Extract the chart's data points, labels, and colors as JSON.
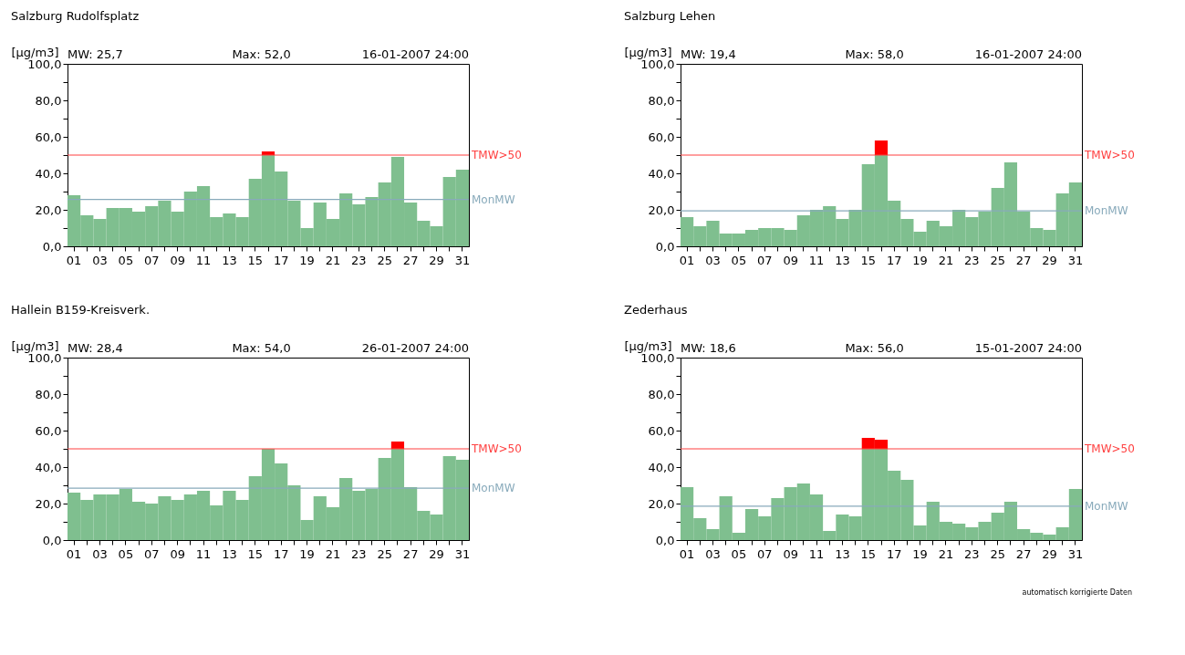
{
  "chart_data": [
    {
      "type": "bar",
      "title": "Salzburg Rudolfsplatz",
      "ylabel": "[µg/m3]",
      "annotations": [
        "MW:  25,7",
        "Max:  52,0",
        "16-01-2007 24:00"
      ],
      "stacked": true,
      "legend": false,
      "grid": false,
      "categories": [
        "01",
        null,
        "03",
        null,
        "05",
        null,
        "07",
        null,
        "09",
        null,
        "11",
        null,
        "13",
        null,
        "15",
        null,
        "17",
        null,
        "19",
        null,
        "21",
        null,
        "23",
        null,
        "25",
        null,
        "27",
        null,
        "29",
        null,
        "31"
      ],
      "series": [
        {
          "color": "#7fbf8f",
          "values": [
            28,
            17,
            15,
            21,
            21,
            19,
            22,
            25,
            19,
            30,
            33,
            16,
            18,
            16,
            37,
            50,
            41,
            25,
            10,
            24,
            15,
            29,
            23,
            27,
            35,
            49,
            24,
            14,
            11,
            38,
            42
          ]
        },
        {
          "color": "#ff0000",
          "values": [
            null,
            null,
            null,
            null,
            null,
            null,
            null,
            null,
            null,
            null,
            null,
            null,
            null,
            null,
            null,
            2,
            null,
            null,
            null,
            null,
            null,
            null,
            null,
            null,
            null,
            null,
            null,
            null,
            null,
            null,
            null
          ]
        }
      ],
      "ylim": [
        0,
        100
      ],
      "yticks": [
        {
          "value": 0,
          "label": "0,0"
        },
        {
          "value": 10,
          "label": null
        },
        {
          "value": 20,
          "label": "20,0"
        },
        {
          "value": 30,
          "label": null
        },
        {
          "value": 40,
          "label": "40,0"
        },
        {
          "value": 50,
          "label": null
        },
        {
          "value": 60,
          "label": "60,0"
        },
        {
          "value": 70,
          "label": null
        },
        {
          "value": 80,
          "label": "80,0"
        },
        {
          "value": 90,
          "label": null
        },
        {
          "value": 100,
          "label": "100,0"
        }
      ],
      "ref_lines": [
        {
          "axis": "y",
          "value": 50,
          "label": "TMW>50",
          "color": "#ff4040"
        },
        {
          "axis": "y",
          "value": 25.7,
          "label": "MonMW",
          "color": "#88aabb"
        }
      ]
    },
    {
      "type": "bar",
      "title": "Salzburg Lehen",
      "ylabel": "[µg/m3]",
      "annotations": [
        "MW:  19,4",
        "Max:  58,0",
        "16-01-2007 24:00"
      ],
      "stacked": true,
      "legend": false,
      "grid": false,
      "categories": [
        "01",
        null,
        "03",
        null,
        "05",
        null,
        "07",
        null,
        "09",
        null,
        "11",
        null,
        "13",
        null,
        "15",
        null,
        "17",
        null,
        "19",
        null,
        "21",
        null,
        "23",
        null,
        "25",
        null,
        "27",
        null,
        "29",
        null,
        "31"
      ],
      "series": [
        {
          "color": "#7fbf8f",
          "values": [
            16,
            11,
            14,
            7,
            7,
            9,
            10,
            10,
            9,
            17,
            20,
            22,
            15,
            20,
            45,
            50,
            25,
            15,
            8,
            14,
            11,
            20,
            16,
            19,
            32,
            46,
            19,
            10,
            9,
            29,
            35
          ]
        },
        {
          "color": "#ff0000",
          "values": [
            null,
            null,
            null,
            null,
            null,
            null,
            null,
            null,
            null,
            null,
            null,
            null,
            null,
            null,
            null,
            8,
            null,
            null,
            null,
            null,
            null,
            null,
            null,
            null,
            null,
            null,
            null,
            null,
            null,
            null,
            null
          ]
        }
      ],
      "ylim": [
        0,
        100
      ],
      "yticks": [
        {
          "value": 0,
          "label": "0,0"
        },
        {
          "value": 10,
          "label": null
        },
        {
          "value": 20,
          "label": "20,0"
        },
        {
          "value": 30,
          "label": null
        },
        {
          "value": 40,
          "label": "40,0"
        },
        {
          "value": 50,
          "label": null
        },
        {
          "value": 60,
          "label": "60,0"
        },
        {
          "value": 70,
          "label": null
        },
        {
          "value": 80,
          "label": "80,0"
        },
        {
          "value": 90,
          "label": null
        },
        {
          "value": 100,
          "label": "100,0"
        }
      ],
      "ref_lines": [
        {
          "axis": "y",
          "value": 50,
          "label": "TMW>50",
          "color": "#ff4040"
        },
        {
          "axis": "y",
          "value": 19.4,
          "label": "MonMW",
          "color": "#88aabb"
        }
      ]
    },
    {
      "type": "bar",
      "title": "Hallein B159-Kreisverk.",
      "ylabel": "[µg/m3]",
      "annotations": [
        "MW:  28,4",
        "Max:  54,0",
        "26-01-2007 24:00"
      ],
      "stacked": true,
      "legend": false,
      "grid": false,
      "categories": [
        "01",
        null,
        "03",
        null,
        "05",
        null,
        "07",
        null,
        "09",
        null,
        "11",
        null,
        "13",
        null,
        "15",
        null,
        "17",
        null,
        "19",
        null,
        "21",
        null,
        "23",
        null,
        "25",
        null,
        "27",
        null,
        "29",
        null,
        "31"
      ],
      "series": [
        {
          "color": "#7fbf8f",
          "values": [
            26,
            22,
            25,
            25,
            28,
            21,
            20,
            24,
            22,
            25,
            27,
            19,
            27,
            22,
            35,
            50,
            42,
            30,
            11,
            24,
            18,
            34,
            27,
            28,
            45,
            50,
            29,
            16,
            14,
            46,
            44
          ]
        },
        {
          "color": "#ff0000",
          "values": [
            null,
            null,
            null,
            null,
            null,
            null,
            null,
            null,
            null,
            null,
            null,
            null,
            null,
            null,
            null,
            null,
            null,
            null,
            null,
            null,
            null,
            null,
            null,
            null,
            null,
            4,
            null,
            null,
            null,
            null,
            null
          ]
        }
      ],
      "ylim": [
        0,
        100
      ],
      "yticks": [
        {
          "value": 0,
          "label": "0,0"
        },
        {
          "value": 10,
          "label": null
        },
        {
          "value": 20,
          "label": "20,0"
        },
        {
          "value": 30,
          "label": null
        },
        {
          "value": 40,
          "label": "40,0"
        },
        {
          "value": 50,
          "label": null
        },
        {
          "value": 60,
          "label": "60,0"
        },
        {
          "value": 70,
          "label": null
        },
        {
          "value": 80,
          "label": "80,0"
        },
        {
          "value": 90,
          "label": null
        },
        {
          "value": 100,
          "label": "100,0"
        }
      ],
      "ref_lines": [
        {
          "axis": "y",
          "value": 50,
          "label": "TMW>50",
          "color": "#ff4040"
        },
        {
          "axis": "y",
          "value": 28.4,
          "label": "MonMW",
          "color": "#88aabb"
        }
      ]
    },
    {
      "type": "bar",
      "title": "Zederhaus",
      "ylabel": "[µg/m3]",
      "annotations": [
        "MW:  18,6",
        "Max:  56,0",
        "15-01-2007 24:00",
        "automatisch korrigierte Daten"
      ],
      "stacked": true,
      "legend": false,
      "grid": false,
      "categories": [
        "01",
        null,
        "03",
        null,
        "05",
        null,
        "07",
        null,
        "09",
        null,
        "11",
        null,
        "13",
        null,
        "15",
        null,
        "17",
        null,
        "19",
        null,
        "21",
        null,
        "23",
        null,
        "25",
        null,
        "27",
        null,
        "29",
        null,
        "31"
      ],
      "series": [
        {
          "color": "#7fbf8f",
          "values": [
            29,
            12,
            6,
            24,
            4,
            17,
            13,
            23,
            29,
            31,
            25,
            5,
            14,
            13,
            50,
            50,
            38,
            33,
            8,
            21,
            10,
            9,
            7,
            10,
            15,
            21,
            6,
            4,
            3,
            7,
            28
          ]
        },
        {
          "color": "#ff0000",
          "values": [
            null,
            null,
            null,
            null,
            null,
            null,
            null,
            null,
            null,
            null,
            null,
            null,
            null,
            null,
            6,
            5,
            null,
            null,
            null,
            null,
            null,
            null,
            null,
            null,
            null,
            null,
            null,
            null,
            null,
            null,
            null
          ]
        }
      ],
      "ylim": [
        0,
        100
      ],
      "yticks": [
        {
          "value": 0,
          "label": "0,0"
        },
        {
          "value": 10,
          "label": null
        },
        {
          "value": 20,
          "label": "20,0"
        },
        {
          "value": 30,
          "label": null
        },
        {
          "value": 40,
          "label": "40,0"
        },
        {
          "value": 50,
          "label": null
        },
        {
          "value": 60,
          "label": "60,0"
        },
        {
          "value": 70,
          "label": null
        },
        {
          "value": 80,
          "label": "80,0"
        },
        {
          "value": 90,
          "label": null
        },
        {
          "value": 100,
          "label": "100,0"
        }
      ],
      "ref_lines": [
        {
          "axis": "y",
          "value": 50,
          "label": "TMW>50",
          "color": "#ff4040"
        },
        {
          "axis": "y",
          "value": 18.6,
          "label": "MonMW",
          "color": "#88aabb"
        }
      ]
    }
  ]
}
